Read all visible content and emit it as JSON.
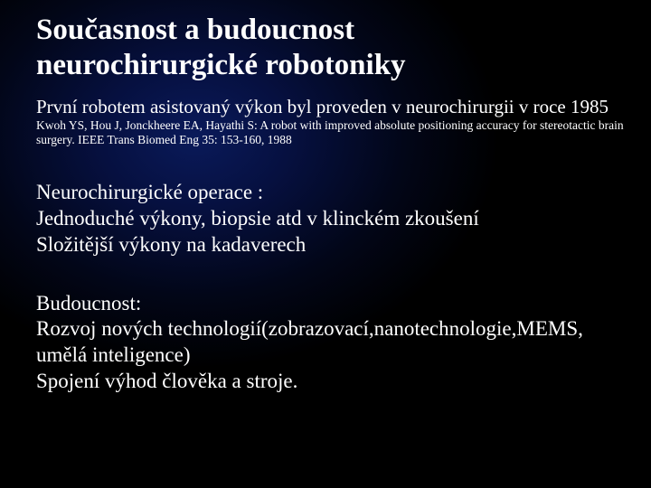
{
  "colors": {
    "text": "#ffffff",
    "background_center": "#0a1a5a",
    "background_mid": "#061040",
    "background_outer": "#000000"
  },
  "typography": {
    "family": "Times New Roman",
    "title_size_pt": 33,
    "intro_size_pt": 21,
    "citation_size_pt": 13.5,
    "body_size_pt": 23,
    "title_weight": "bold"
  },
  "title": {
    "line1": "Současnost a budoucnost",
    "line2": "neurochirurgické robotoniky"
  },
  "intro": "První robotem asistovaný výkon byl proveden v neurochirurgii v roce 1985",
  "citation": "Kwoh YS, Hou J, Jonckheere EA, Hayathi S: A robot with improved absolute positioning accuracy for stereotactic brain surgery. IEEE Trans Biomed Eng 35: 153-160, 1988",
  "operations": {
    "head": "Neurochirurgické operace :",
    "line1": "Jednoduché výkony, biopsie atd v klinckém zkoušení",
    "line2": "Složitější výkony na kadaverech"
  },
  "future": {
    "head": "Budoucnost:",
    "line1": "Rozvoj nových technologií(zobrazovací,nanotechnologie,MEMS, umělá inteligence)",
    "line2": "Spojení výhod člověka a stroje."
  }
}
